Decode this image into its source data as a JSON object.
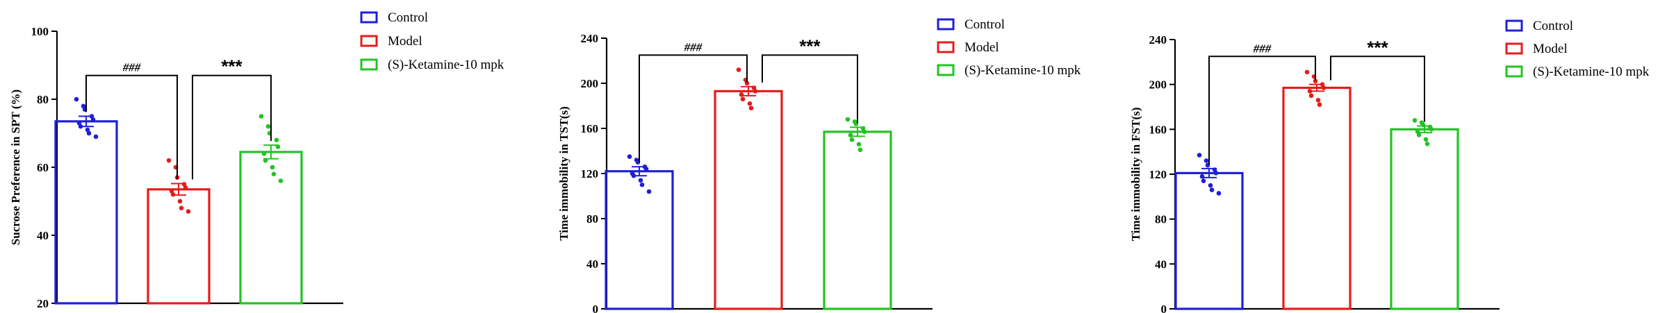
{
  "chart_data": [
    {
      "type": "bar",
      "categories": [
        "Control",
        "Model",
        "(S)-Ketamine-10 mpk"
      ],
      "colors": [
        "#1f1fd8",
        "#e51c1c",
        "#22c422"
      ],
      "ylabel": "Sucrose Preference in SPT (%)",
      "ylim": [
        20,
        100
      ],
      "yticks": [
        20,
        40,
        60,
        80,
        100
      ],
      "means": [
        73.5,
        53.5,
        64.5
      ],
      "sem": [
        1.5,
        1.7,
        2.0
      ],
      "points": [
        [
          80,
          78,
          77,
          75,
          74,
          73,
          72,
          71,
          70,
          69
        ],
        [
          62,
          60,
          57,
          55,
          54,
          53,
          52,
          50,
          48,
          47
        ],
        [
          75,
          72,
          70,
          68,
          66,
          64,
          62,
          60,
          58,
          56
        ]
      ],
      "comparisons": [
        {
          "from": 0,
          "to": 1,
          "label": "###",
          "y": 87
        },
        {
          "from": 1,
          "to": 2,
          "label": "***",
          "y": 87
        }
      ],
      "legend": [
        "Control",
        "Model",
        "(S)-Ketamine-10 mpk"
      ],
      "legend_placement": "top-right"
    },
    {
      "type": "bar",
      "categories": [
        "Control",
        "Model",
        "(S)-Ketamine-10 mpk"
      ],
      "colors": [
        "#1f1fd8",
        "#e51c1c",
        "#22c422"
      ],
      "ylabel": "Time immobility in TST(s)",
      "ylim": [
        0,
        240
      ],
      "yticks": [
        0,
        40,
        80,
        120,
        160,
        200,
        240
      ],
      "means": [
        122,
        193,
        157
      ],
      "sem": [
        4,
        4,
        4
      ],
      "points": [
        [
          135,
          132,
          130,
          126,
          124,
          120,
          118,
          114,
          110,
          104
        ],
        [
          212,
          203,
          200,
          196,
          193,
          190,
          186,
          182,
          178
        ],
        [
          168,
          166,
          164,
          160,
          157,
          154,
          150,
          146,
          141
        ]
      ],
      "comparisons": [
        {
          "from": 0,
          "to": 1,
          "label": "###",
          "y": 225
        },
        {
          "from": 1,
          "to": 2,
          "label": "***",
          "y": 225
        }
      ],
      "legend": [
        "Control",
        "Model",
        "(S)-Ketamine-10 mpk"
      ],
      "legend_placement": "top-right"
    },
    {
      "type": "bar",
      "categories": [
        "Control",
        "Model",
        "(S)-Ketamine-10 mpk"
      ],
      "colors": [
        "#1f1fd8",
        "#e51c1c",
        "#22c422"
      ],
      "ylabel": "Time immobility in FST(s)",
      "ylim": [
        0,
        240
      ],
      "yticks": [
        0,
        40,
        80,
        120,
        160,
        200,
        240
      ],
      "means": [
        121,
        197,
        160
      ],
      "sem": [
        4,
        3,
        3
      ],
      "points": [
        [
          137,
          132,
          128,
          124,
          121,
          118,
          114,
          110,
          106,
          103
        ],
        [
          211,
          207,
          203,
          200,
          197,
          194,
          190,
          186,
          182
        ],
        [
          168,
          166,
          164,
          162,
          160,
          158,
          155,
          151,
          147
        ]
      ],
      "comparisons": [
        {
          "from": 0,
          "to": 1,
          "label": "###",
          "y": 225
        },
        {
          "from": 1,
          "to": 2,
          "label": "***",
          "y": 225
        }
      ],
      "legend": [
        "Control",
        "Model",
        "(S)-Ketamine-10 mpk"
      ],
      "legend_placement": "top-right"
    }
  ]
}
